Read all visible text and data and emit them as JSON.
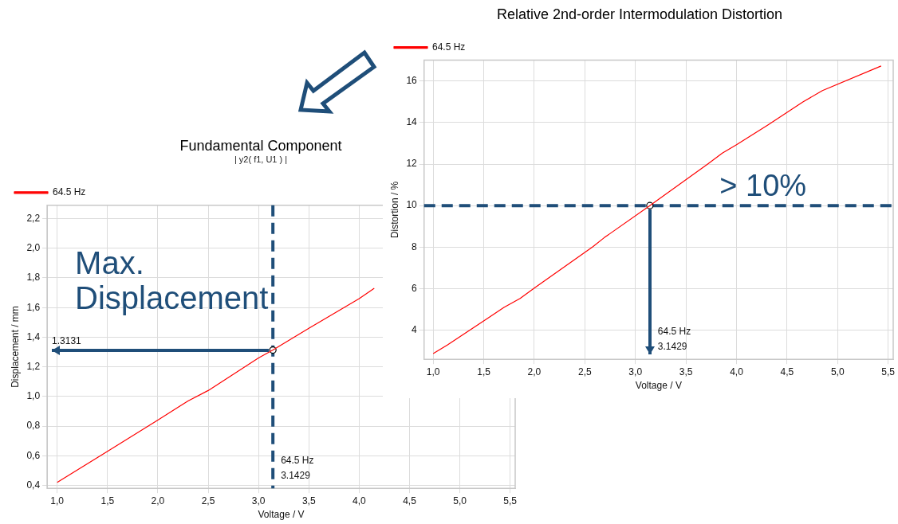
{
  "chart_data": [
    {
      "type": "line",
      "title": "Fundamental Component",
      "subtitle": "| y2( f1, U1 ) |",
      "xlabel": "Voltage / V",
      "ylabel": "Displacement / mm",
      "xlim": [
        0.9,
        5.55
      ],
      "ylim": [
        0.38,
        2.29
      ],
      "xticks": [
        {
          "value": 1,
          "label": "1,0"
        },
        {
          "value": 1.5,
          "label": "1,5"
        },
        {
          "value": 2,
          "label": "2,0"
        },
        {
          "value": 2.5,
          "label": "2,5"
        },
        {
          "value": 3,
          "label": "3,0"
        },
        {
          "value": 3.5,
          "label": "3,5"
        },
        {
          "value": 4,
          "label": "4,0"
        },
        {
          "value": 4.5,
          "label": "4,5"
        },
        {
          "value": 5,
          "label": "5,0"
        },
        {
          "value": 5.5,
          "label": "5,5"
        }
      ],
      "yticks": [
        {
          "value": 0.4,
          "label": "0,4"
        },
        {
          "value": 0.6,
          "label": "0,6"
        },
        {
          "value": 0.8,
          "label": "0,8"
        },
        {
          "value": 1,
          "label": "1,0"
        },
        {
          "value": 1.2,
          "label": "1,2"
        },
        {
          "value": 1.4,
          "label": "1,4"
        },
        {
          "value": 1.6,
          "label": "1,6"
        },
        {
          "value": 1.8,
          "label": "1,8"
        },
        {
          "value": 2,
          "label": "2,0"
        },
        {
          "value": 2.2,
          "label": "2,2"
        }
      ],
      "series": [
        {
          "name": "64.5 Hz",
          "color": "#ff0000",
          "x": [
            1.0,
            1.5,
            2.0,
            2.3,
            2.5,
            3.0,
            3.1429,
            3.5,
            4.0,
            4.15
          ],
          "values": [
            0.42,
            0.63,
            0.84,
            0.97,
            1.04,
            1.26,
            1.3131,
            1.46,
            1.66,
            1.73
          ]
        },
        {
          "type": "scatter",
          "color": "#000000",
          "x": [
            3.1429
          ],
          "values": [
            1.3131
          ]
        }
      ],
      "line_style": "solid",
      "grid": true,
      "legend": "top left",
      "ref_lines": [
        {
          "axis": "x",
          "value": 3.1429,
          "color": "#1f4e79",
          "line_style": "dashed"
        }
      ],
      "annotations": [
        "Max. Displacement",
        "1.3131",
        "64.5 Hz\n3.1429"
      ]
    },
    {
      "type": "line",
      "title": "Relative 2nd-order Intermodulation Distortion",
      "xlabel": "Voltage / V",
      "ylabel": "Distortion / %",
      "xlim": [
        0.91,
        5.55
      ],
      "ylim": [
        2.6,
        17
      ],
      "xticks": [
        {
          "value": 1,
          "label": "1,0"
        },
        {
          "value": 1.5,
          "label": "1,5"
        },
        {
          "value": 2,
          "label": "2,0"
        },
        {
          "value": 2.5,
          "label": "2,5"
        },
        {
          "value": 3,
          "label": "3,0"
        },
        {
          "value": 3.5,
          "label": "3,5"
        },
        {
          "value": 4,
          "label": "4,0"
        },
        {
          "value": 4.5,
          "label": "4,5"
        },
        {
          "value": 5,
          "label": "5,0"
        },
        {
          "value": 5.5,
          "label": "5,5"
        }
      ],
      "yticks": [
        4,
        6,
        8,
        10,
        12,
        14,
        16
      ],
      "series": [
        {
          "name": "64.5 Hz",
          "color": "#ff0000",
          "x": [
            1.0,
            1.14,
            1.55,
            1.7,
            1.86,
            2.0,
            2.58,
            2.69,
            3.1429,
            3.71,
            3.86,
            4.0,
            4.31,
            4.66,
            4.85,
            5.43
          ],
          "values": [
            2.88,
            3.29,
            4.61,
            5.1,
            5.53,
            6.03,
            8.02,
            8.45,
            10.0,
            11.98,
            12.53,
            12.93,
            13.88,
            15.0,
            15.54,
            16.72
          ]
        },
        {
          "type": "scatter",
          "color": "#000000",
          "x": [
            3.1429
          ],
          "values": [
            10.0
          ]
        }
      ],
      "line_style": "solid",
      "grid": true,
      "legend": "top left",
      "ref_lines": [
        {
          "axis": "y",
          "value": 10,
          "label": "> 10%",
          "color": "#1f4e79",
          "line_style": "dashed"
        }
      ],
      "annotations": [
        {
          "text": "64.5 Hz\n3.1429",
          "x": 3.1429,
          "y": 10
        }
      ]
    }
  ]
}
